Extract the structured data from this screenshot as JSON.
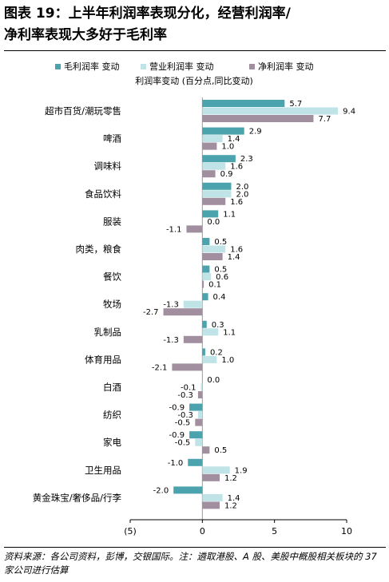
{
  "title_line_1": "图表 19：上半年利润率表现分化，经营利润率/",
  "title_line_2": "净利率表现大多好于毛利率",
  "footer": "资料来源：各公司资料，彭博，交银国际。注：遴取港股、A 股、美股中概股相关板块的 37 家公司进行估算",
  "colors": {
    "gross": "#4BA3AE",
    "operating": "#BFE3E6",
    "net": "#A18FA0"
  },
  "chart_data": {
    "type": "bar",
    "orientation": "horizontal",
    "subtitle": "利润率变动 (百分点,同比变动)",
    "categories": [
      "超市百货/潮玩零售",
      "啤酒",
      "调味料",
      "食品饮料",
      "服装",
      "肉类，粮食",
      "餐饮",
      "牧场",
      "乳制品",
      "体育用品",
      "白酒",
      "纺织",
      "家电",
      "卫生用品",
      "黄金珠宝/奢侈品/行李"
    ],
    "series": [
      {
        "name": "毛利润率 变动",
        "color": "#4BA3AE",
        "values": [
          5.7,
          2.9,
          2.3,
          2.0,
          1.1,
          0.5,
          0.5,
          0.4,
          0.3,
          0.2,
          0.0,
          -0.9,
          -0.9,
          -1.0,
          -2.0
        ]
      },
      {
        "name": "营业利润率 变动",
        "color": "#BFE3E6",
        "values": [
          9.4,
          1.4,
          1.6,
          2.0,
          0.0,
          1.6,
          0.6,
          -1.3,
          1.1,
          1.0,
          -0.1,
          -0.3,
          -0.5,
          1.9,
          1.4
        ]
      },
      {
        "name": "净利润率 变动",
        "color": "#A18FA0",
        "values": [
          7.7,
          1.0,
          0.9,
          1.6,
          -1.1,
          1.4,
          0.1,
          -2.7,
          -1.3,
          -2.1,
          -0.3,
          -0.5,
          0.5,
          1.2,
          1.2
        ]
      }
    ],
    "xlim": [
      -5,
      10
    ],
    "ticks": [
      -5,
      0,
      5,
      10
    ],
    "tick_labels": [
      "(5)",
      "0",
      "5",
      "10"
    ],
    "legend_position": "top-center",
    "grid": false
  }
}
